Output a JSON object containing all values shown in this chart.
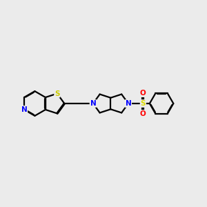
{
  "background_color": "#ebebeb",
  "bond_color": "#000000",
  "n_color": "#0000ff",
  "s_color": "#cccc00",
  "o_color": "#ff0000",
  "line_width": 1.6,
  "figsize": [
    3.0,
    3.0
  ],
  "dpi": 100,
  "xlim": [
    0,
    10
  ],
  "ylim": [
    2,
    8
  ]
}
